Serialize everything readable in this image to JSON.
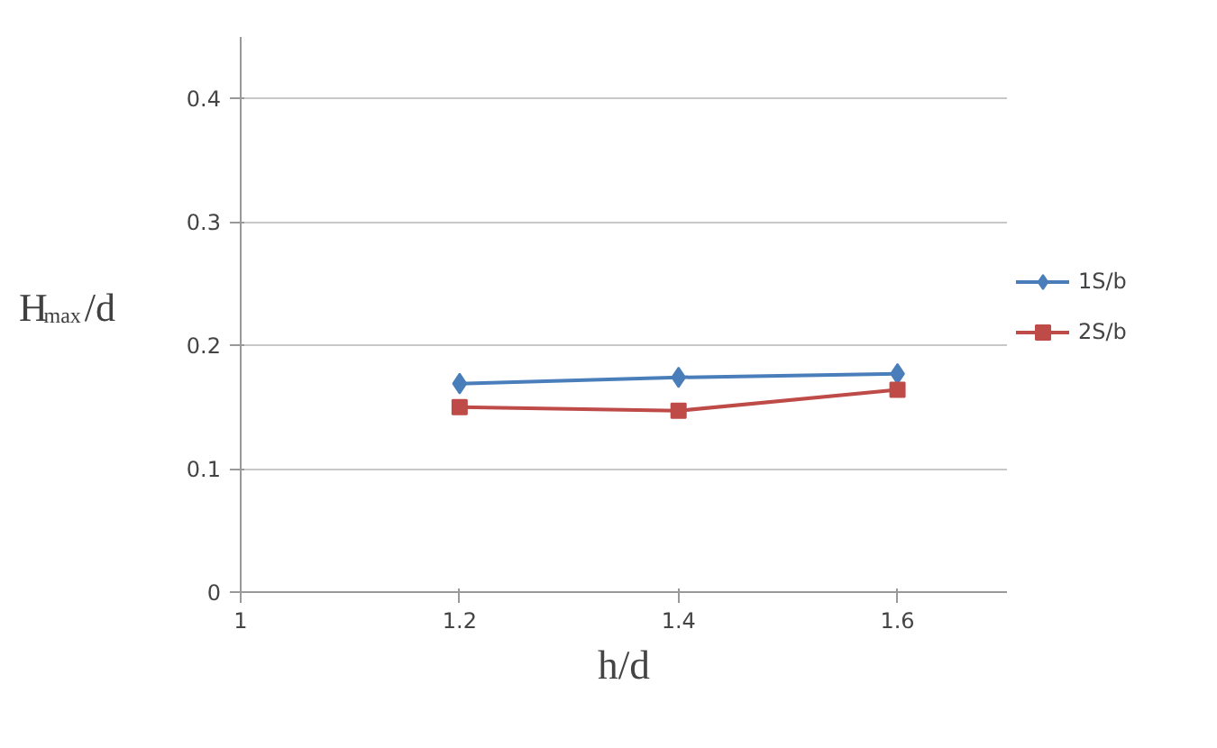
{
  "chart_data": {
    "type": "line",
    "xlabel": "h/d",
    "ylabel": "H$_{max}$/d",
    "x": [
      1.2,
      1.4,
      1.6
    ],
    "series": [
      {
        "name": "1S/b",
        "color": "#4a7ebb",
        "values": [
          0.169,
          0.174,
          0.177
        ],
        "marker": "diamond"
      },
      {
        "name": "2S/b",
        "color": "#be4b48",
        "values": [
          0.15,
          0.147,
          0.164
        ],
        "marker": "square"
      }
    ],
    "xlim": [
      1,
      1.7
    ],
    "xticks": [
      1,
      1.2,
      1.4,
      1.6
    ],
    "ylim": [
      0,
      0.45
    ],
    "yticks": [
      0,
      0.1,
      0.2,
      0.3,
      0.4
    ],
    "grid": "y",
    "legend": "right"
  }
}
